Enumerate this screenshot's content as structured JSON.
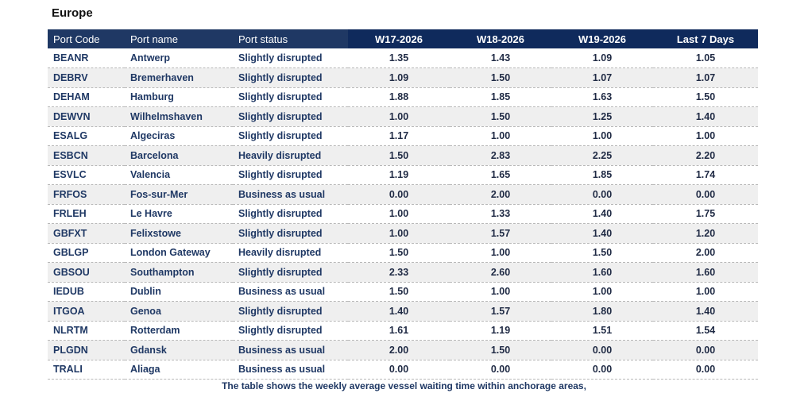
{
  "title": "Europe",
  "columns": [
    "Port Code",
    "Port name",
    "Port status",
    "W17-2026",
    "W18-2026",
    "W19-2026",
    "Last 7 Days"
  ],
  "rows": [
    {
      "code": "BEANR",
      "name": "Antwerp",
      "status": "Slightly disrupted",
      "w17": "1.35",
      "w18": "1.43",
      "w19": "1.09",
      "last7": "1.05"
    },
    {
      "code": "DEBRV",
      "name": "Bremerhaven",
      "status": "Slightly disrupted",
      "w17": "1.09",
      "w18": "1.50",
      "w19": "1.07",
      "last7": "1.07"
    },
    {
      "code": "DEHAM",
      "name": "Hamburg",
      "status": "Slightly disrupted",
      "w17": "1.88",
      "w18": "1.85",
      "w19": "1.63",
      "last7": "1.50"
    },
    {
      "code": "DEWVN",
      "name": "Wilhelmshaven",
      "status": "Slightly disrupted",
      "w17": "1.00",
      "w18": "1.50",
      "w19": "1.25",
      "last7": "1.40"
    },
    {
      "code": "ESALG",
      "name": "Algeciras",
      "status": "Slightly disrupted",
      "w17": "1.17",
      "w18": "1.00",
      "w19": "1.00",
      "last7": "1.00"
    },
    {
      "code": "ESBCN",
      "name": "Barcelona",
      "status": "Heavily disrupted",
      "w17": "1.50",
      "w18": "2.83",
      "w19": "2.25",
      "last7": "2.20"
    },
    {
      "code": "ESVLC",
      "name": "Valencia",
      "status": "Slightly disrupted",
      "w17": "1.19",
      "w18": "1.65",
      "w19": "1.85",
      "last7": "1.74"
    },
    {
      "code": "FRFOS",
      "name": "Fos-sur-Mer",
      "status": "Business as usual",
      "w17": "0.00",
      "w18": "2.00",
      "w19": "0.00",
      "last7": "0.00"
    },
    {
      "code": "FRLEH",
      "name": "Le Havre",
      "status": "Slightly disrupted",
      "w17": "1.00",
      "w18": "1.33",
      "w19": "1.40",
      "last7": "1.75"
    },
    {
      "code": "GBFXT",
      "name": "Felixstowe",
      "status": "Slightly disrupted",
      "w17": "1.00",
      "w18": "1.57",
      "w19": "1.40",
      "last7": "1.20"
    },
    {
      "code": "GBLGP",
      "name": "London Gateway",
      "status": "Heavily disrupted",
      "w17": "1.50",
      "w18": "1.00",
      "w19": "1.50",
      "last7": "2.00"
    },
    {
      "code": "GBSOU",
      "name": "Southampton",
      "status": "Slightly disrupted",
      "w17": "2.33",
      "w18": "2.60",
      "w19": "1.60",
      "last7": "1.60"
    },
    {
      "code": "IEDUB",
      "name": "Dublin",
      "status": "Business as usual",
      "w17": "1.50",
      "w18": "1.00",
      "w19": "1.00",
      "last7": "1.00"
    },
    {
      "code": "ITGOA",
      "name": "Genoa",
      "status": "Slightly disrupted",
      "w17": "1.40",
      "w18": "1.57",
      "w19": "1.80",
      "last7": "1.40"
    },
    {
      "code": "NLRTM",
      "name": "Rotterdam",
      "status": "Slightly disrupted",
      "w17": "1.61",
      "w18": "1.19",
      "w19": "1.51",
      "last7": "1.54"
    },
    {
      "code": "PLGDN",
      "name": "Gdansk",
      "status": "Business as usual",
      "w17": "2.00",
      "w18": "1.50",
      "w19": "0.00",
      "last7": "0.00"
    },
    {
      "code": "TRALI",
      "name": "Aliaga",
      "status": "Business as usual",
      "w17": "0.00",
      "w18": "0.00",
      "w19": "0.00",
      "last7": "0.00"
    }
  ],
  "caption": "The table shows the weekly average vessel waiting time within anchorage areas,",
  "colors": {
    "header_bg": "#1f3864",
    "header_numeric_bg": "#0f2a5c",
    "text": "#1f3864",
    "row_alt": "#efefef"
  }
}
